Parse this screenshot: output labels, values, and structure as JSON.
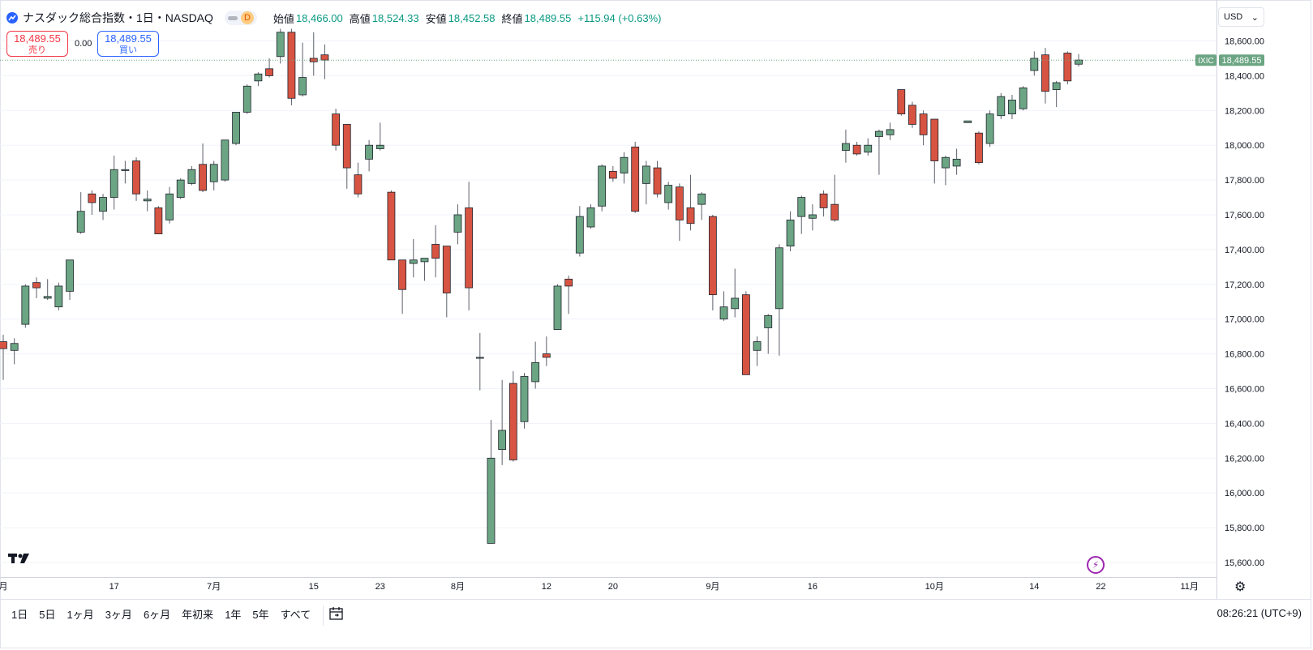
{
  "header": {
    "symbol": "ナスダック総合指数・1日・NASDAQ",
    "badge": "D",
    "open_label": "始値",
    "open": "18,466.00",
    "high_label": "高値",
    "high": "18,524.33",
    "low_label": "安値",
    "low": "18,452.58",
    "close_label": "終値",
    "close": "18,489.55",
    "change": "+115.94 (+0.63%)"
  },
  "quote": {
    "sell_price": "18,489.55",
    "sell_label": "売り",
    "spread": "0.00",
    "buy_price": "18,489.55",
    "buy_label": "買い"
  },
  "currency": "USD",
  "timeframes": [
    "1日",
    "5日",
    "1ヶ月",
    "3ヶ月",
    "6ヶ月",
    "年初来",
    "1年",
    "5年",
    "すべて"
  ],
  "clock": "08:26:21 (UTC+9)",
  "colors": {
    "up": "#6ba583",
    "down": "#d75442",
    "grid": "#f0f3fa",
    "last_price": "#6ba583"
  },
  "chart_data": {
    "type": "candlestick",
    "y_ticks": [
      "15,600.00",
      "15,800.00",
      "16,000.00",
      "16,200.00",
      "16,400.00",
      "16,600.00",
      "16,800.00",
      "17,000.00",
      "17,200.00",
      "17,400.00",
      "17,600.00",
      "17,800.00",
      "18,000.00",
      "18,200.00",
      "18,400.00",
      "18,600.00"
    ],
    "ylim": [
      15560,
      18700
    ],
    "x_ticks": [
      {
        "i": 0,
        "label": "月"
      },
      {
        "i": 10,
        "label": "17"
      },
      {
        "i": 19,
        "label": "7月"
      },
      {
        "i": 28,
        "label": "15"
      },
      {
        "i": 34,
        "label": "23"
      },
      {
        "i": 41,
        "label": "8月"
      },
      {
        "i": 49,
        "label": "12"
      },
      {
        "i": 55,
        "label": "20"
      },
      {
        "i": 64,
        "label": "9月"
      },
      {
        "i": 73,
        "label": "16"
      },
      {
        "i": 84,
        "label": "10月"
      },
      {
        "i": 93,
        "label": "14"
      },
      {
        "i": 99,
        "label": "22"
      },
      {
        "i": 107,
        "label": "11月"
      }
    ],
    "last_price_label": "IXIC",
    "last_price": 18489.55,
    "last_price_text": "18,489.55",
    "candles": [
      {
        "o": 16870,
        "h": 16910,
        "l": 16650,
        "c": 16830
      },
      {
        "o": 16820,
        "h": 16890,
        "l": 16740,
        "c": 16860
      },
      {
        "o": 16970,
        "h": 17200,
        "l": 16950,
        "c": 17190
      },
      {
        "o": 17210,
        "h": 17240,
        "l": 17120,
        "c": 17180
      },
      {
        "o": 17120,
        "h": 17230,
        "l": 17110,
        "c": 17130
      },
      {
        "o": 17070,
        "h": 17210,
        "l": 17050,
        "c": 17190
      },
      {
        "o": 17160,
        "h": 17340,
        "l": 17110,
        "c": 17340
      },
      {
        "o": 17500,
        "h": 17730,
        "l": 17490,
        "c": 17620
      },
      {
        "o": 17720,
        "h": 17740,
        "l": 17600,
        "c": 17670
      },
      {
        "o": 17620,
        "h": 17720,
        "l": 17570,
        "c": 17700
      },
      {
        "o": 17700,
        "h": 17940,
        "l": 17630,
        "c": 17860
      },
      {
        "o": 17860,
        "h": 17910,
        "l": 17780,
        "c": 17860
      },
      {
        "o": 17910,
        "h": 17930,
        "l": 17680,
        "c": 17720
      },
      {
        "o": 17680,
        "h": 17740,
        "l": 17620,
        "c": 17690
      },
      {
        "o": 17640,
        "h": 17650,
        "l": 17490,
        "c": 17490
      },
      {
        "o": 17570,
        "h": 17760,
        "l": 17550,
        "c": 17720
      },
      {
        "o": 17700,
        "h": 17810,
        "l": 17690,
        "c": 17800
      },
      {
        "o": 17780,
        "h": 17880,
        "l": 17770,
        "c": 17860
      },
      {
        "o": 17890,
        "h": 18010,
        "l": 17730,
        "c": 17740
      },
      {
        "o": 17790,
        "h": 17910,
        "l": 17740,
        "c": 17890
      },
      {
        "o": 17800,
        "h": 18030,
        "l": 17790,
        "c": 18030
      },
      {
        "o": 18010,
        "h": 18190,
        "l": 18000,
        "c": 18190
      },
      {
        "o": 18190,
        "h": 18350,
        "l": 18180,
        "c": 18340
      },
      {
        "o": 18370,
        "h": 18420,
        "l": 18340,
        "c": 18410
      },
      {
        "o": 18440,
        "h": 18500,
        "l": 18390,
        "c": 18400
      },
      {
        "o": 18510,
        "h": 18670,
        "l": 18470,
        "c": 18650
      },
      {
        "o": 18650,
        "h": 18670,
        "l": 18230,
        "c": 18270
      },
      {
        "o": 18290,
        "h": 18590,
        "l": 18280,
        "c": 18390
      },
      {
        "o": 18500,
        "h": 18650,
        "l": 18400,
        "c": 18480
      },
      {
        "o": 18520,
        "h": 18580,
        "l": 18380,
        "c": 18490
      },
      {
        "o": 18180,
        "h": 18210,
        "l": 17970,
        "c": 18000
      },
      {
        "o": 18120,
        "h": 18120,
        "l": 17750,
        "c": 17870
      },
      {
        "o": 17830,
        "h": 17900,
        "l": 17700,
        "c": 17720
      },
      {
        "o": 17920,
        "h": 18030,
        "l": 17850,
        "c": 18000
      },
      {
        "o": 17980,
        "h": 18130,
        "l": 17970,
        "c": 18000
      },
      {
        "o": 17730,
        "h": 17740,
        "l": 17340,
        "c": 17340
      },
      {
        "o": 17340,
        "h": 17340,
        "l": 17030,
        "c": 17170
      },
      {
        "o": 17320,
        "h": 17460,
        "l": 17240,
        "c": 17340
      },
      {
        "o": 17330,
        "h": 17340,
        "l": 17220,
        "c": 17350
      },
      {
        "o": 17430,
        "h": 17540,
        "l": 17240,
        "c": 17350
      },
      {
        "o": 17420,
        "h": 17420,
        "l": 17010,
        "c": 17150
      },
      {
        "o": 17500,
        "h": 17660,
        "l": 17430,
        "c": 17600
      },
      {
        "o": 17640,
        "h": 17790,
        "l": 17050,
        "c": 17180
      },
      {
        "o": 16780,
        "h": 16920,
        "l": 16590,
        "c": 16780
      },
      {
        "o": 15710,
        "h": 16420,
        "l": 15710,
        "c": 16200
      },
      {
        "o": 16250,
        "h": 16650,
        "l": 16160,
        "c": 16360
      },
      {
        "o": 16630,
        "h": 16700,
        "l": 16180,
        "c": 16190
      },
      {
        "o": 16410,
        "h": 16690,
        "l": 16370,
        "c": 16670
      },
      {
        "o": 16640,
        "h": 16870,
        "l": 16600,
        "c": 16750
      },
      {
        "o": 16800,
        "h": 16900,
        "l": 16730,
        "c": 16780
      },
      {
        "o": 16940,
        "h": 17200,
        "l": 16940,
        "c": 17190
      },
      {
        "o": 17230,
        "h": 17250,
        "l": 17030,
        "c": 17190
      },
      {
        "o": 17380,
        "h": 17650,
        "l": 17360,
        "c": 17590
      },
      {
        "o": 17530,
        "h": 17660,
        "l": 17520,
        "c": 17640
      },
      {
        "o": 17650,
        "h": 17890,
        "l": 17620,
        "c": 17880
      },
      {
        "o": 17850,
        "h": 17880,
        "l": 17790,
        "c": 17810
      },
      {
        "o": 17840,
        "h": 17960,
        "l": 17780,
        "c": 17930
      },
      {
        "o": 17990,
        "h": 18020,
        "l": 17610,
        "c": 17620
      },
      {
        "o": 17780,
        "h": 17910,
        "l": 17660,
        "c": 17880
      },
      {
        "o": 17870,
        "h": 17910,
        "l": 17700,
        "c": 17720
      },
      {
        "o": 17670,
        "h": 17790,
        "l": 17630,
        "c": 17770
      },
      {
        "o": 17760,
        "h": 17780,
        "l": 17450,
        "c": 17570
      },
      {
        "o": 17640,
        "h": 17830,
        "l": 17510,
        "c": 17550
      },
      {
        "o": 17660,
        "h": 17730,
        "l": 17570,
        "c": 17720
      },
      {
        "o": 17590,
        "h": 17600,
        "l": 17050,
        "c": 17140
      },
      {
        "o": 17000,
        "h": 17160,
        "l": 16990,
        "c": 17070
      },
      {
        "o": 17060,
        "h": 17290,
        "l": 17010,
        "c": 17120
      },
      {
        "o": 17140,
        "h": 17160,
        "l": 16680,
        "c": 16680
      },
      {
        "o": 16820,
        "h": 16900,
        "l": 16730,
        "c": 16870
      },
      {
        "o": 16950,
        "h": 17030,
        "l": 16800,
        "c": 17020
      },
      {
        "o": 17060,
        "h": 17430,
        "l": 16790,
        "c": 17410
      },
      {
        "o": 17420,
        "h": 17620,
        "l": 17390,
        "c": 17570
      },
      {
        "o": 17590,
        "h": 17710,
        "l": 17490,
        "c": 17700
      },
      {
        "o": 17580,
        "h": 17660,
        "l": 17510,
        "c": 17600
      },
      {
        "o": 17720,
        "h": 17740,
        "l": 17590,
        "c": 17640
      },
      {
        "o": 17660,
        "h": 17830,
        "l": 17560,
        "c": 17570
      },
      {
        "o": 17970,
        "h": 18090,
        "l": 17900,
        "c": 18010
      },
      {
        "o": 18000,
        "h": 18020,
        "l": 17940,
        "c": 17950
      },
      {
        "o": 17960,
        "h": 18040,
        "l": 17940,
        "c": 18000
      },
      {
        "o": 18050,
        "h": 18090,
        "l": 17830,
        "c": 18080
      },
      {
        "o": 18060,
        "h": 18130,
        "l": 18030,
        "c": 18090
      },
      {
        "o": 18320,
        "h": 18320,
        "l": 18170,
        "c": 18180
      },
      {
        "o": 18230,
        "h": 18250,
        "l": 18100,
        "c": 18120
      },
      {
        "o": 18180,
        "h": 18200,
        "l": 18000,
        "c": 18060
      },
      {
        "o": 18150,
        "h": 18150,
        "l": 17780,
        "c": 17910
      },
      {
        "o": 17870,
        "h": 17940,
        "l": 17770,
        "c": 17930
      },
      {
        "o": 17880,
        "h": 17980,
        "l": 17830,
        "c": 17920
      },
      {
        "o": 18130,
        "h": 18140,
        "l": 18130,
        "c": 18140
      },
      {
        "o": 18070,
        "h": 18080,
        "l": 17890,
        "c": 17900
      },
      {
        "o": 18010,
        "h": 18200,
        "l": 17990,
        "c": 18180
      },
      {
        "o": 18170,
        "h": 18300,
        "l": 18150,
        "c": 18280
      },
      {
        "o": 18180,
        "h": 18290,
        "l": 18150,
        "c": 18260
      },
      {
        "o": 18210,
        "h": 18340,
        "l": 18200,
        "c": 18330
      },
      {
        "o": 18430,
        "h": 18540,
        "l": 18400,
        "c": 18500
      },
      {
        "o": 18520,
        "h": 18560,
        "l": 18240,
        "c": 18310
      },
      {
        "o": 18320,
        "h": 18370,
        "l": 18220,
        "c": 18360
      },
      {
        "o": 18530,
        "h": 18540,
        "l": 18350,
        "c": 18370
      },
      {
        "o": 18466,
        "h": 18524,
        "l": 18452,
        "c": 18490
      }
    ]
  }
}
